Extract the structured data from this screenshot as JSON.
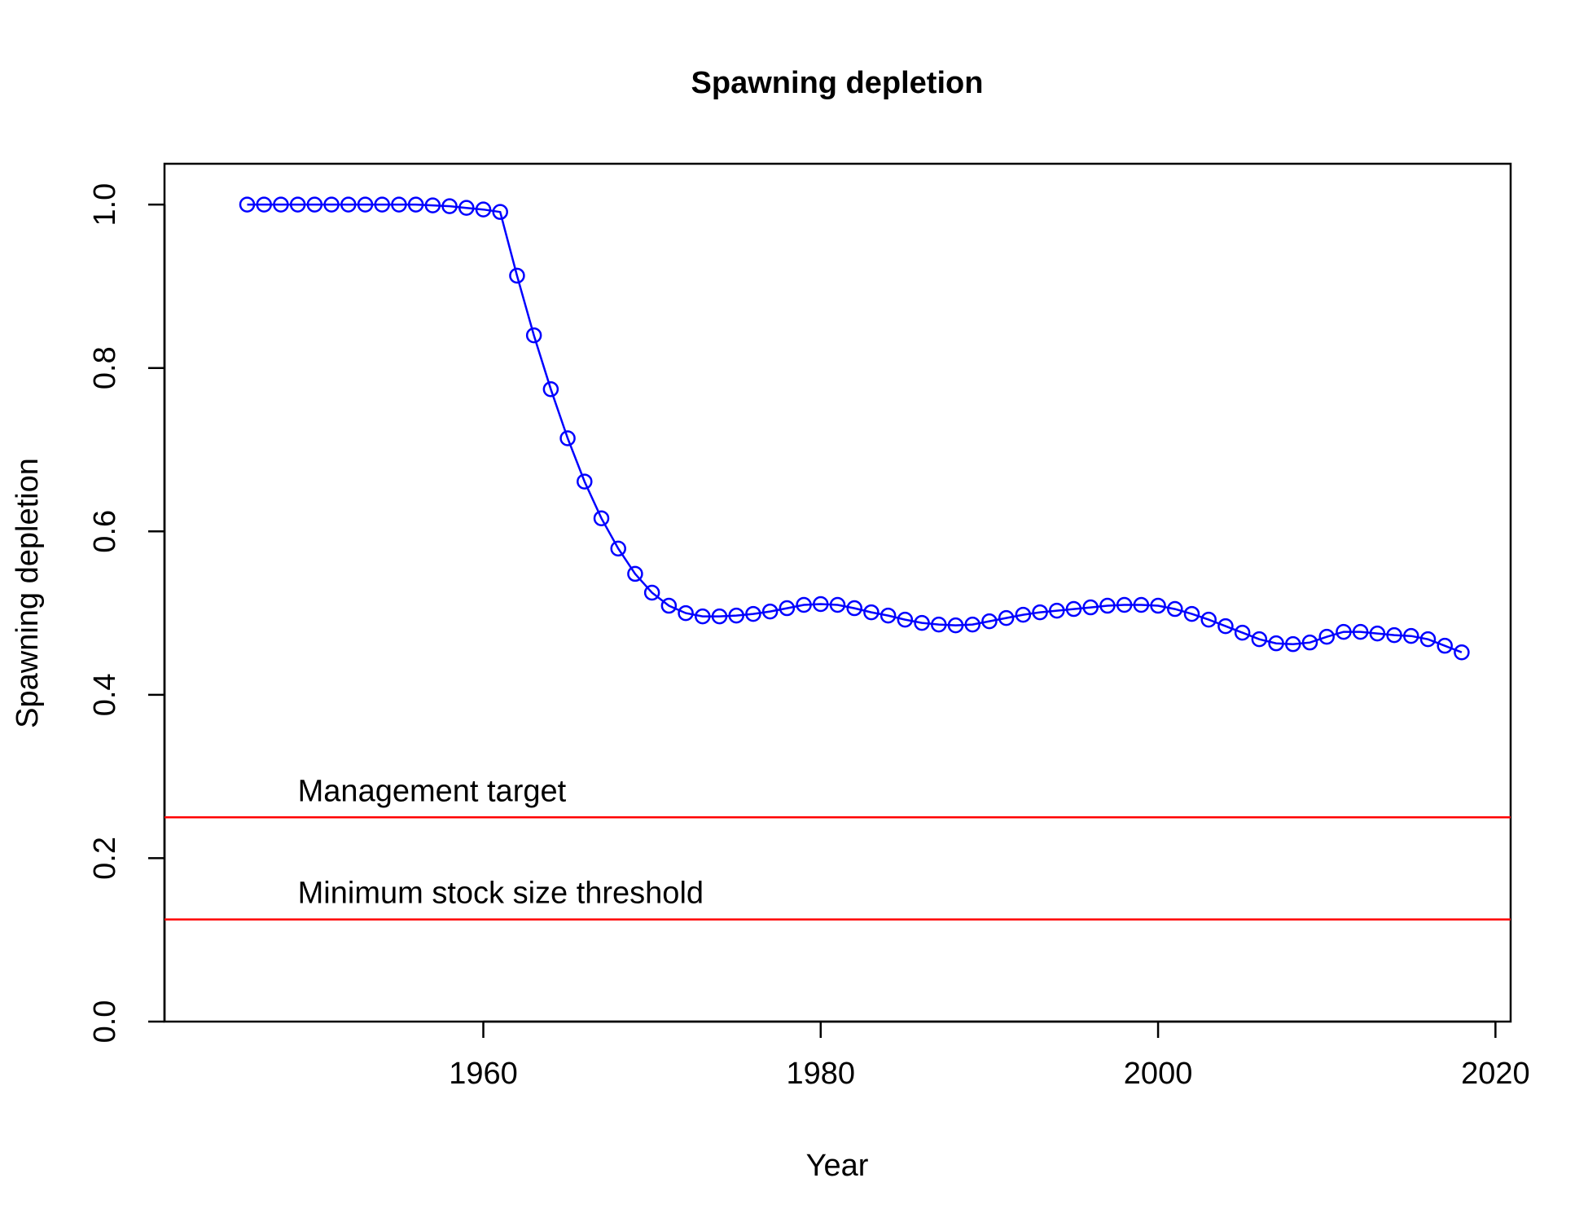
{
  "chart_data": {
    "type": "line",
    "title": "Spawning depletion",
    "xlabel": "Year",
    "ylabel": "Spawning depletion",
    "xlim": [
      1941.1,
      2020.9
    ],
    "ylim": [
      0.0,
      1.05
    ],
    "x_ticks": [
      1960,
      1980,
      2000,
      2020
    ],
    "y_ticks": [
      0.0,
      0.2,
      0.4,
      0.6,
      0.8,
      1.0
    ],
    "x_tick_labels": [
      "1960",
      "1980",
      "2000",
      "2020"
    ],
    "y_tick_labels": [
      "0.0",
      "0.2",
      "0.4",
      "0.6",
      "0.8",
      "1.0"
    ],
    "grid": false,
    "series": [
      {
        "color": "#0000ff",
        "marker": "open-circle",
        "x": [
          1946,
          1947,
          1948,
          1949,
          1950,
          1951,
          1952,
          1953,
          1954,
          1955,
          1956,
          1957,
          1958,
          1959,
          1960,
          1961,
          1962,
          1963,
          1964,
          1965,
          1966,
          1967,
          1968,
          1969,
          1970,
          1971,
          1972,
          1973,
          1974,
          1975,
          1976,
          1977,
          1978,
          1979,
          1980,
          1981,
          1982,
          1983,
          1984,
          1985,
          1986,
          1987,
          1988,
          1989,
          1990,
          1991,
          1992,
          1993,
          1994,
          1995,
          1996,
          1997,
          1998,
          1999,
          2000,
          2001,
          2002,
          2003,
          2004,
          2005,
          2006,
          2007,
          2008,
          2009,
          2010,
          2011,
          2012,
          2013,
          2014,
          2015,
          2016,
          2017,
          2018
        ],
        "y": [
          1.0,
          1.0,
          1.0,
          1.0,
          1.0,
          1.0,
          1.0,
          1.0,
          1.0,
          1.0,
          1.0,
          0.999,
          0.998,
          0.996,
          0.994,
          0.991,
          0.913,
          0.84,
          0.774,
          0.714,
          0.661,
          0.616,
          0.579,
          0.548,
          0.525,
          0.509,
          0.5,
          0.496,
          0.496,
          0.497,
          0.499,
          0.502,
          0.506,
          0.51,
          0.511,
          0.51,
          0.506,
          0.501,
          0.497,
          0.492,
          0.488,
          0.486,
          0.485,
          0.486,
          0.49,
          0.494,
          0.498,
          0.501,
          0.503,
          0.505,
          0.507,
          0.509,
          0.51,
          0.51,
          0.509,
          0.505,
          0.499,
          0.492,
          0.484,
          0.476,
          0.468,
          0.463,
          0.462,
          0.464,
          0.471,
          0.477,
          0.477,
          0.475,
          0.473,
          0.472,
          0.468,
          0.46,
          0.452
        ]
      }
    ],
    "reference_lines": [
      {
        "y": 0.25,
        "label": "Management target",
        "color": "#ff0000"
      },
      {
        "y": 0.125,
        "label": "Minimum stock size threshold",
        "color": "#ff0000"
      }
    ]
  }
}
